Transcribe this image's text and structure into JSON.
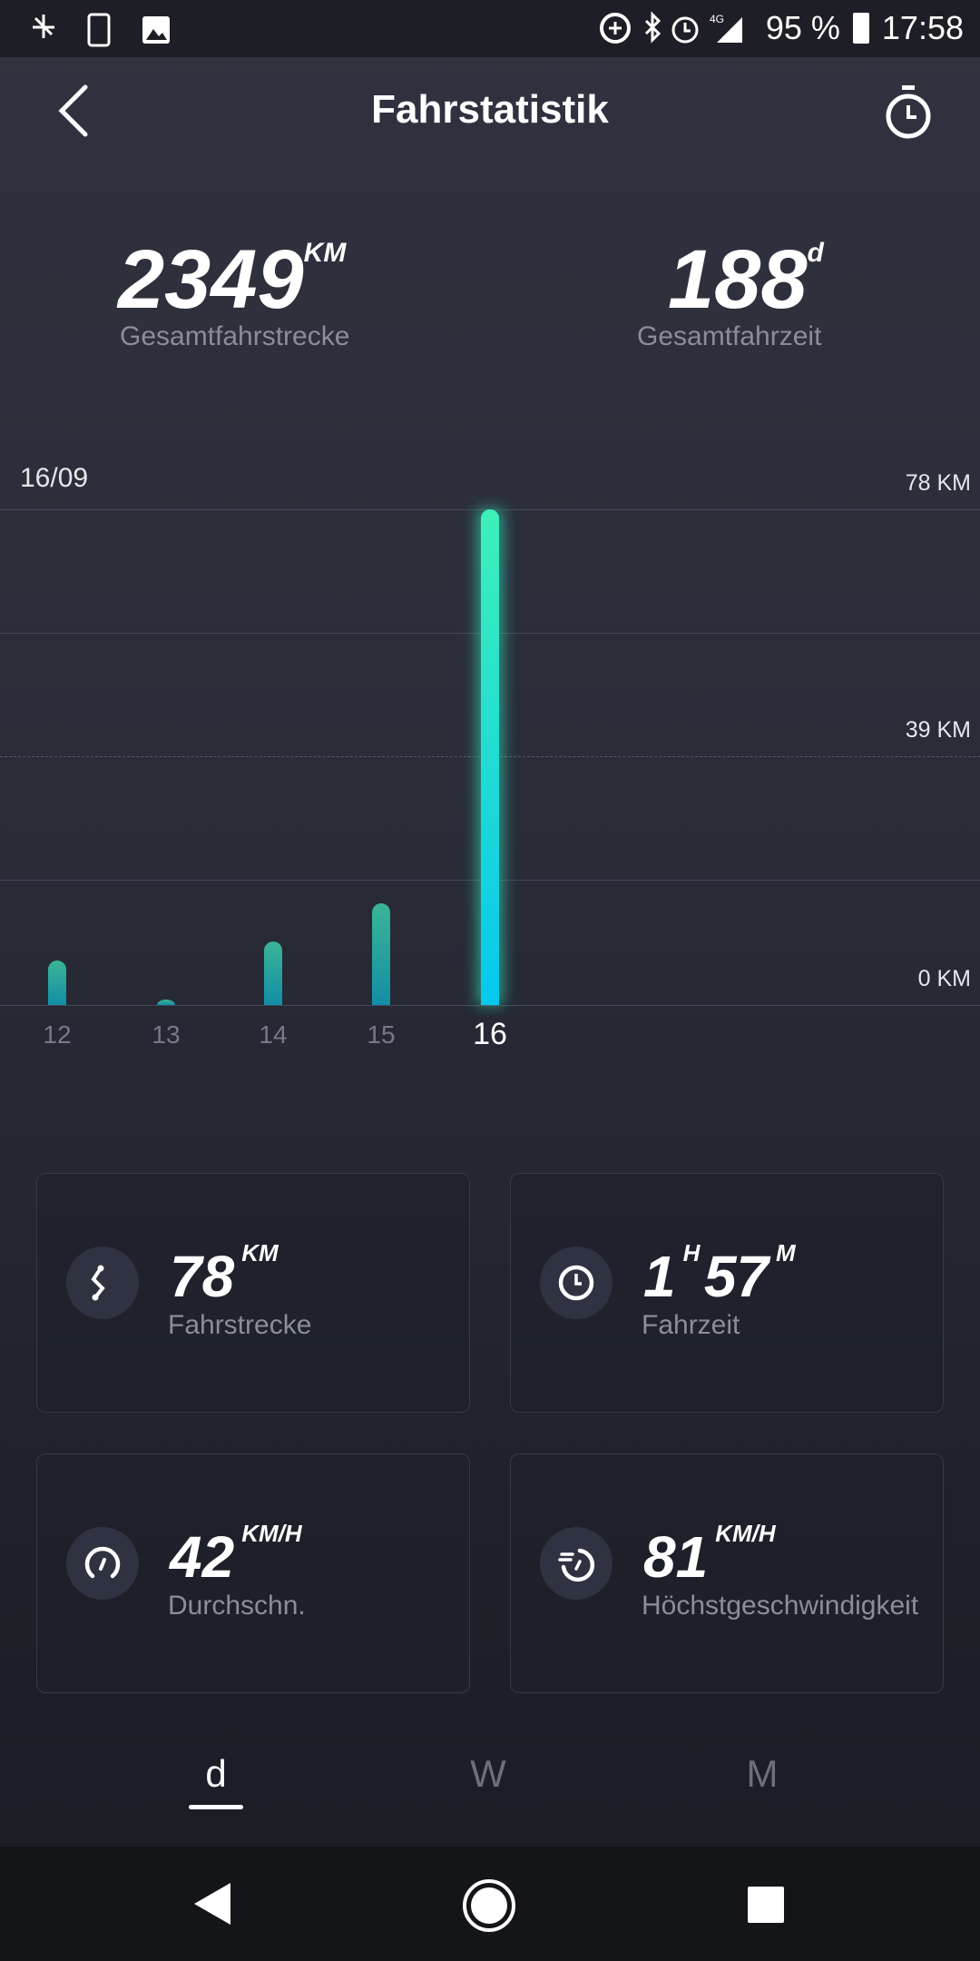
{
  "status_bar": {
    "battery": "95 %",
    "time": "17:58",
    "network": "4G"
  },
  "header": {
    "title": "Fahrstatistik"
  },
  "summary": {
    "total_distance": "2349",
    "total_distance_unit": "KM",
    "total_distance_label": "Gesamtfahrstrecke",
    "total_time": "188",
    "total_time_unit": "d",
    "total_time_label": "Gesamtfahrzeit"
  },
  "chart_data": {
    "type": "bar",
    "date_label": "16/09",
    "categories": [
      "12",
      "13",
      "14",
      "15",
      "16"
    ],
    "values": [
      7,
      0.7,
      10,
      16,
      78
    ],
    "selected": "16",
    "unit": "KM",
    "y_ticks": [
      "78 KM",
      "39 KM",
      "0 KM"
    ],
    "ylim": [
      0,
      78
    ],
    "colors": {
      "bar": "#2fb29a",
      "selected": "#19d3e6"
    }
  },
  "cards": [
    {
      "icon": "route-icon",
      "value": "78",
      "unit": "KM",
      "label": "Fahrstrecke"
    },
    {
      "icon": "clock-icon",
      "value": "1",
      "unit": "H",
      "value2": "57",
      "unit2": "M",
      "label": "Fahrzeit"
    },
    {
      "icon": "speedometer-icon",
      "value": "42",
      "unit": "KM/H",
      "label": "Durchschn."
    },
    {
      "icon": "max-speed-icon",
      "value": "81",
      "unit": "KM/H",
      "label": "Höchstgeschwindigkeit"
    }
  ],
  "tabs": [
    {
      "label": "d",
      "active": true
    },
    {
      "label": "W"
    },
    {
      "label": "M"
    }
  ]
}
